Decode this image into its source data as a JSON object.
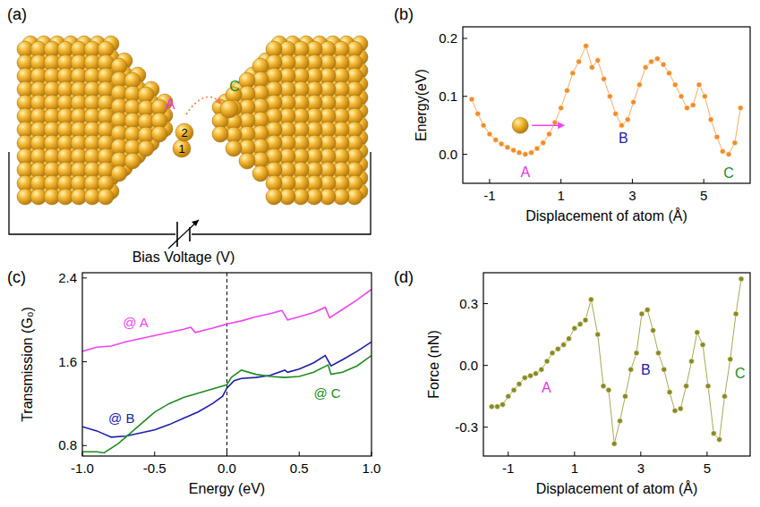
{
  "diagram": {
    "panel_label": "(a)",
    "site_labels": [
      {
        "text": "A",
        "color": "#e535e5"
      },
      {
        "text": "C",
        "color": "#1e8c1e"
      }
    ],
    "atom_labels": [
      "2",
      "1"
    ],
    "caption": "Bias Voltage (V)"
  },
  "chart_data": [
    {
      "type": "line",
      "panel_label": "(b)",
      "x_label": "Displacement of atom (Å)",
      "y_label": "Energy(eV)",
      "xlim": [
        -1.75,
        6.3
      ],
      "ylim": [
        -0.05,
        0.22
      ],
      "xticks": [
        -1,
        1,
        3,
        5
      ],
      "yticks": [
        {
          "value": 0,
          "label": "0.0"
        },
        {
          "value": 0.1,
          "label": "0.1"
        },
        {
          "value": 0.2,
          "label": "0.2"
        }
      ],
      "series": [
        {
          "color": "#f28c28",
          "marker": "circle",
          "x": [
            -1.5,
            -1.33,
            -1.17,
            -1.0,
            -0.83,
            -0.67,
            -0.5,
            -0.33,
            -0.17,
            0,
            0.17,
            0.33,
            0.5,
            0.67,
            0.83,
            1.0,
            1.17,
            1.33,
            1.5,
            1.7,
            1.87,
            2.03,
            2.2,
            2.37,
            2.53,
            2.7,
            2.87,
            3.03,
            3.2,
            3.37,
            3.53,
            3.7,
            3.87,
            4.03,
            4.2,
            4.37,
            4.53,
            4.7,
            4.87,
            5.03,
            5.2,
            5.37,
            5.53,
            5.7,
            5.87,
            6.03
          ],
          "values": [
            0.095,
            0.07,
            0.05,
            0.035,
            0.025,
            0.018,
            0.012,
            0.007,
            0.003,
            0.0,
            0.003,
            0.01,
            0.02,
            0.035,
            0.055,
            0.08,
            0.11,
            0.14,
            0.16,
            0.187,
            0.15,
            0.162,
            0.13,
            0.1,
            0.07,
            0.05,
            0.06,
            0.09,
            0.12,
            0.15,
            0.16,
            0.165,
            0.155,
            0.14,
            0.12,
            0.1,
            0.08,
            0.085,
            0.12,
            0.1,
            0.06,
            0.03,
            0.005,
            0.0,
            0.02,
            0.08
          ]
        }
      ],
      "annotations": [
        {
          "text": "A",
          "x": 0,
          "y": -0.03,
          "color": "#e535e5"
        },
        {
          "text": "B",
          "x": 2.75,
          "y": 0.028,
          "color": "#1c1caa"
        },
        {
          "text": "C",
          "x": 5.7,
          "y": -0.032,
          "color": "#1e8c1e"
        }
      ]
    },
    {
      "type": "line",
      "panel_label": "(c)",
      "x_label": "Energy (eV)",
      "y_label": "Transmission (G₀)",
      "xlim": [
        -1,
        1
      ],
      "ylim": [
        0.7,
        2.45
      ],
      "xticks": [
        {
          "value": -1,
          "label": "-1.0"
        },
        {
          "value": -0.5,
          "label": "-0.5"
        },
        {
          "value": 0,
          "label": "0.0"
        },
        {
          "value": 0.5,
          "label": "0.5"
        },
        {
          "value": 1,
          "label": "1.0"
        }
      ],
      "yticks": [
        0.8,
        1.6,
        2.4
      ],
      "vlines": [
        0
      ],
      "series": [
        {
          "name": "@ A",
          "color": "#ee44ee",
          "label_x": -0.72,
          "label_y": 1.98,
          "x": [
            -1,
            -0.9,
            -0.8,
            -0.7,
            -0.6,
            -0.5,
            -0.4,
            -0.3,
            -0.25,
            -0.22,
            -0.1,
            0,
            0.1,
            0.2,
            0.3,
            0.38,
            0.42,
            0.5,
            0.6,
            0.68,
            0.71,
            0.8,
            0.9,
            1.0
          ],
          "values": [
            1.7,
            1.74,
            1.75,
            1.79,
            1.82,
            1.85,
            1.88,
            1.91,
            1.93,
            1.88,
            1.92,
            1.96,
            1.99,
            2.03,
            2.06,
            2.09,
            2.0,
            2.03,
            2.07,
            2.12,
            2.02,
            2.1,
            2.19,
            2.29
          ]
        },
        {
          "name": "@ B",
          "color": "#1c1caa",
          "label_x": -0.82,
          "label_y": 1.06,
          "x": [
            -1,
            -0.9,
            -0.8,
            -0.7,
            -0.6,
            -0.5,
            -0.4,
            -0.3,
            -0.2,
            -0.1,
            -0.03,
            0,
            0.05,
            0.1,
            0.2,
            0.3,
            0.4,
            0.42,
            0.5,
            0.6,
            0.68,
            0.72,
            0.8,
            0.9,
            1.0
          ],
          "values": [
            0.98,
            0.94,
            0.88,
            0.89,
            0.92,
            0.95,
            1.0,
            1.06,
            1.12,
            1.2,
            1.27,
            1.35,
            1.42,
            1.44,
            1.45,
            1.47,
            1.52,
            1.5,
            1.53,
            1.59,
            1.66,
            1.56,
            1.62,
            1.7,
            1.79
          ]
        },
        {
          "name": "@ C",
          "color": "#1e8c1e",
          "label_x": 0.6,
          "label_y": 1.3,
          "x": [
            -1,
            -0.9,
            -0.85,
            -0.75,
            -0.6,
            -0.5,
            -0.4,
            -0.3,
            -0.2,
            -0.1,
            0,
            0.03,
            0.1,
            0.2,
            0.3,
            0.4,
            0.5,
            0.6,
            0.7,
            0.72,
            0.8,
            0.9,
            1.0
          ],
          "values": [
            0.74,
            0.74,
            0.73,
            0.82,
            1.0,
            1.12,
            1.2,
            1.26,
            1.3,
            1.34,
            1.38,
            1.45,
            1.52,
            1.48,
            1.46,
            1.45,
            1.46,
            1.5,
            1.57,
            1.48,
            1.5,
            1.56,
            1.66
          ]
        }
      ]
    },
    {
      "type": "line",
      "panel_label": "(d)",
      "x_label": "Displacement of atom (Å)",
      "y_label": "Force (nN)",
      "xlim": [
        -1.75,
        6.3
      ],
      "ylim": [
        -0.44,
        0.45
      ],
      "xticks": [
        -1,
        1,
        3,
        5
      ],
      "yticks": [
        -0.3,
        {
          "value": 0,
          "label": "0.0"
        },
        0.3
      ],
      "series": [
        {
          "color": "#8a8a1e",
          "marker": "circle",
          "x": [
            -1.5,
            -1.33,
            -1.17,
            -1.0,
            -0.83,
            -0.67,
            -0.5,
            -0.33,
            -0.17,
            0,
            0.17,
            0.33,
            0.5,
            0.67,
            0.83,
            1.0,
            1.17,
            1.33,
            1.5,
            1.7,
            1.87,
            2.03,
            2.2,
            2.37,
            2.53,
            2.7,
            2.87,
            3.03,
            3.2,
            3.37,
            3.53,
            3.7,
            3.87,
            4.03,
            4.2,
            4.37,
            4.53,
            4.7,
            4.87,
            5.03,
            5.2,
            5.37,
            5.53,
            5.7,
            5.87,
            6.03
          ],
          "values": [
            -0.2,
            -0.2,
            -0.19,
            -0.15,
            -0.12,
            -0.09,
            -0.06,
            -0.05,
            -0.04,
            -0.02,
            0.02,
            0.06,
            0.08,
            0.1,
            0.13,
            0.18,
            0.2,
            0.22,
            0.32,
            0.15,
            -0.1,
            -0.12,
            -0.38,
            -0.27,
            -0.15,
            -0.02,
            0.06,
            0.25,
            0.27,
            0.17,
            0.06,
            -0.02,
            -0.13,
            -0.22,
            -0.21,
            -0.1,
            0.02,
            0.16,
            0.1,
            -0.1,
            -0.33,
            -0.36,
            -0.15,
            0.03,
            0.25,
            0.42
          ]
        }
      ],
      "annotations": [
        {
          "text": "A",
          "x": 0.15,
          "y": -0.11,
          "color": "#e535e5"
        },
        {
          "text": "B",
          "x": 3.15,
          "y": -0.02,
          "color": "#1c1caa"
        },
        {
          "text": "C",
          "x": 6.0,
          "y": -0.04,
          "color": "#1e8c1e"
        }
      ]
    }
  ]
}
